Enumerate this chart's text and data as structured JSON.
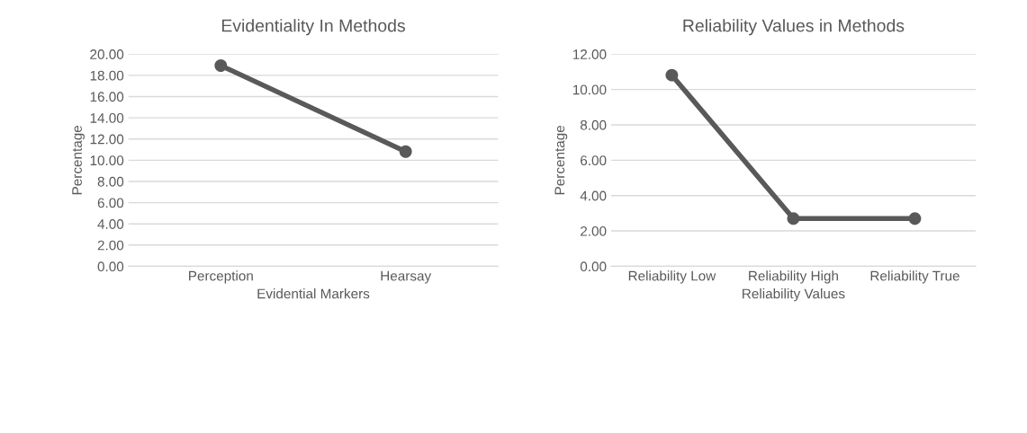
{
  "chart_data": [
    {
      "type": "line",
      "title": "Evidentiality In Methods",
      "xlabel": "Evidential Markers",
      "ylabel": "Percentage",
      "categories": [
        "Perception",
        "Hearsay"
      ],
      "series": [
        {
          "color": "#595959",
          "values": [
            18.92,
            10.81
          ]
        }
      ],
      "ylim": [
        0,
        20
      ],
      "yticks": [
        {
          "value": 0,
          "label": "0.00"
        },
        {
          "value": 2,
          "label": "2.00"
        },
        {
          "value": 4,
          "label": "4.00"
        },
        {
          "value": 6,
          "label": "6.00"
        },
        {
          "value": 8,
          "label": "8.00"
        },
        {
          "value": 10,
          "label": "10.00"
        },
        {
          "value": 12,
          "label": "12.00"
        },
        {
          "value": 14,
          "label": "14.00"
        },
        {
          "value": 16,
          "label": "16.00"
        },
        {
          "value": 18,
          "label": "18.00"
        },
        {
          "value": 20,
          "label": "20.00"
        }
      ],
      "grid": "y",
      "marker": "circle",
      "line_style": "solid"
    },
    {
      "type": "line",
      "title": "Reliability Values in Methods",
      "xlabel": "Reliability Values",
      "ylabel": "Percentage",
      "categories": [
        "Reliability Low",
        "Reliability High",
        "Reliability True"
      ],
      "series": [
        {
          "color": "#595959",
          "values": [
            10.81,
            2.7,
            2.7
          ]
        }
      ],
      "ylim": [
        0,
        12
      ],
      "yticks": [
        {
          "value": 0,
          "label": "0.00"
        },
        {
          "value": 2,
          "label": "2.00"
        },
        {
          "value": 4,
          "label": "4.00"
        },
        {
          "value": 6,
          "label": "6.00"
        },
        {
          "value": 8,
          "label": "8.00"
        },
        {
          "value": 10,
          "label": "10.00"
        },
        {
          "value": 12,
          "label": "12.00"
        }
      ],
      "grid": "y",
      "marker": "circle",
      "line_style": "solid"
    }
  ]
}
